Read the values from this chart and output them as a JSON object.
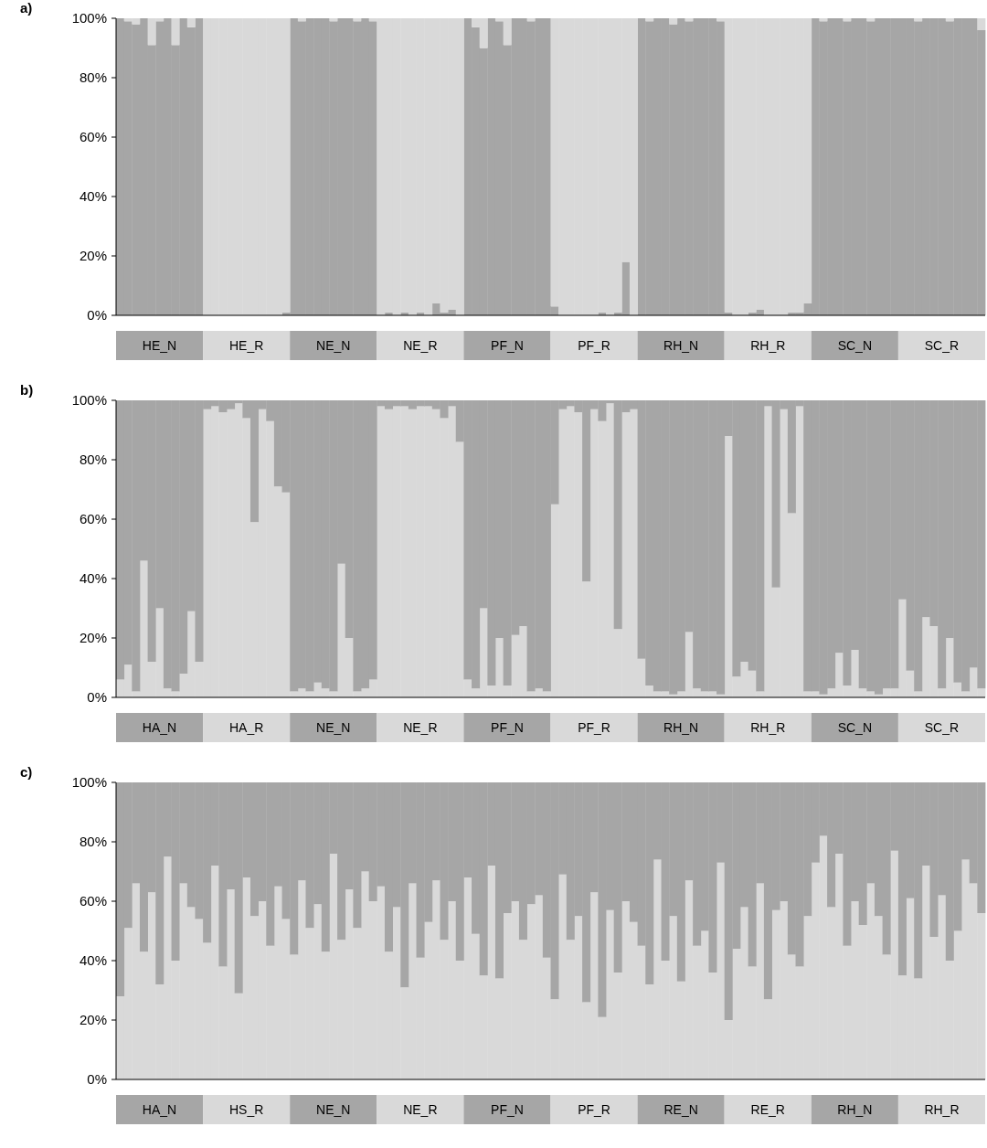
{
  "chart_data": [
    {
      "type": "bar",
      "title": "a)",
      "stacked": true,
      "grid": false,
      "ylim": [
        0,
        100
      ],
      "yticks": [
        {
          "value": 0,
          "label": "0%"
        },
        {
          "value": 20,
          "label": "20%"
        },
        {
          "value": 40,
          "label": "40%"
        },
        {
          "value": 60,
          "label": "60%"
        },
        {
          "value": 80,
          "label": "80%"
        },
        {
          "value": 100,
          "label": "100%"
        }
      ],
      "categories": [
        null,
        null,
        null,
        null,
        null,
        "HE_N",
        null,
        null,
        null,
        null,
        null,
        null,
        null,
        null,
        null,
        null,
        "HE_R",
        null,
        null,
        null,
        null,
        null,
        null,
        null,
        null,
        null,
        null,
        "NE_N",
        null,
        null,
        null,
        null,
        null,
        null,
        null,
        null,
        null,
        null,
        "NE_R",
        null,
        null,
        null,
        null,
        null,
        null,
        null,
        null,
        null,
        null,
        "PF_N",
        null,
        null,
        null,
        null,
        null,
        null,
        null,
        null,
        null,
        null,
        "PF_R",
        null,
        null,
        null,
        null,
        null,
        null,
        null,
        null,
        null,
        null,
        "RH_N",
        null,
        null,
        null,
        null,
        null,
        null,
        null,
        null,
        null,
        null,
        "RH_R",
        null,
        null,
        null,
        null,
        null,
        null,
        null,
        null,
        null,
        null,
        "SC_N",
        null,
        null,
        null,
        null,
        null,
        null,
        null,
        null,
        null,
        null,
        "SC_R",
        null,
        null,
        null,
        null,
        null
      ],
      "series": [
        {
          "color": "#a6a6a6",
          "values": [
            100,
            99,
            98,
            100,
            91,
            99,
            100,
            91,
            100,
            97,
            100,
            0,
            0,
            0,
            0,
            0,
            0,
            0,
            0,
            0,
            0,
            1,
            100,
            99,
            100,
            100,
            100,
            99,
            100,
            100,
            99,
            100,
            99,
            0,
            1,
            0,
            1,
            0,
            1,
            0,
            4,
            1,
            2,
            0,
            100,
            97,
            90,
            100,
            99,
            91,
            100,
            100,
            99,
            100,
            100,
            3,
            0,
            0,
            0,
            0,
            0,
            1,
            0,
            1,
            18,
            0,
            100,
            99,
            100,
            100,
            98,
            100,
            99,
            100,
            100,
            100,
            99,
            1,
            0,
            0,
            1,
            2,
            0,
            0,
            0,
            1,
            1,
            4,
            100,
            99,
            100,
            100,
            99,
            100,
            100,
            99,
            100,
            100,
            100,
            100,
            100,
            99,
            100,
            100,
            100,
            99,
            100,
            100,
            100,
            96
          ]
        },
        {
          "color": "#d9d9d9",
          "values": [
            0,
            1,
            2,
            0,
            9,
            1,
            0,
            9,
            0,
            3,
            0,
            100,
            100,
            100,
            100,
            100,
            100,
            100,
            100,
            100,
            100,
            99,
            0,
            1,
            0,
            0,
            0,
            1,
            0,
            0,
            1,
            0,
            1,
            100,
            99,
            100,
            99,
            100,
            99,
            100,
            96,
            99,
            98,
            100,
            0,
            3,
            10,
            0,
            1,
            9,
            0,
            0,
            1,
            0,
            0,
            97,
            100,
            100,
            100,
            100,
            100,
            99,
            100,
            99,
            82,
            100,
            0,
            1,
            0,
            0,
            2,
            0,
            1,
            0,
            0,
            0,
            1,
            99,
            100,
            100,
            99,
            98,
            100,
            100,
            100,
            99,
            99,
            96,
            0,
            1,
            0,
            0,
            1,
            0,
            0,
            1,
            0,
            0,
            0,
            0,
            0,
            1,
            0,
            0,
            0,
            1,
            0,
            0,
            0,
            4
          ]
        }
      ]
    },
    {
      "type": "bar",
      "title": "b)",
      "stacked": true,
      "grid": false,
      "ylim": [
        0,
        100
      ],
      "yticks": [
        {
          "value": 0,
          "label": "0%"
        },
        {
          "value": 20,
          "label": "20%"
        },
        {
          "value": 40,
          "label": "40%"
        },
        {
          "value": 60,
          "label": "60%"
        },
        {
          "value": 80,
          "label": "80%"
        },
        {
          "value": 100,
          "label": "100%"
        }
      ],
      "categories": [
        null,
        null,
        null,
        null,
        null,
        "HA_N",
        null,
        null,
        null,
        null,
        null,
        null,
        null,
        null,
        null,
        null,
        "HA_R",
        null,
        null,
        null,
        null,
        null,
        null,
        null,
        null,
        null,
        null,
        "NE_N",
        null,
        null,
        null,
        null,
        null,
        null,
        null,
        null,
        null,
        null,
        "NE_R",
        null,
        null,
        null,
        null,
        null,
        null,
        null,
        null,
        null,
        null,
        "PF_N",
        null,
        null,
        null,
        null,
        null,
        null,
        null,
        null,
        null,
        null,
        "PF_R",
        null,
        null,
        null,
        null,
        null,
        null,
        null,
        null,
        null,
        null,
        "RH_N",
        null,
        null,
        null,
        null,
        null,
        null,
        null,
        null,
        null,
        null,
        "RH_R",
        null,
        null,
        null,
        null,
        null,
        null,
        null,
        null,
        null,
        null,
        "SC_N",
        null,
        null,
        null,
        null,
        null,
        null,
        null,
        null,
        null,
        null,
        "SC_R",
        null,
        null,
        null,
        null,
        null
      ],
      "series": [
        {
          "color": "#d9d9d9",
          "values": [
            6,
            11,
            2,
            46,
            12,
            30,
            3,
            2,
            8,
            29,
            12,
            97,
            98,
            96,
            97,
            99,
            94,
            59,
            97,
            93,
            71,
            69,
            2,
            3,
            2,
            5,
            3,
            2,
            45,
            20,
            2,
            3,
            6,
            98,
            97,
            98,
            98,
            97,
            98,
            98,
            97,
            94,
            98,
            86,
            6,
            3,
            30,
            4,
            20,
            4,
            21,
            24,
            2,
            3,
            2,
            65,
            97,
            98,
            96,
            39,
            97,
            93,
            99,
            23,
            96,
            97,
            13,
            4,
            2,
            2,
            1,
            2,
            22,
            3,
            2,
            2,
            1,
            88,
            7,
            12,
            9,
            2,
            98,
            37,
            97,
            62,
            98,
            2,
            2,
            1,
            3,
            15,
            4,
            16,
            3,
            2,
            1,
            3,
            3,
            33,
            9,
            2,
            27,
            24,
            3,
            20,
            5,
            2,
            10,
            3
          ]
        },
        {
          "color": "#a6a6a6",
          "values": [
            94,
            89,
            98,
            54,
            88,
            70,
            97,
            98,
            92,
            71,
            88,
            3,
            2,
            4,
            3,
            1,
            6,
            41,
            3,
            7,
            29,
            31,
            98,
            97,
            98,
            95,
            97,
            98,
            55,
            80,
            98,
            97,
            94,
            2,
            3,
            2,
            2,
            3,
            2,
            2,
            3,
            6,
            2,
            14,
            94,
            97,
            70,
            96,
            80,
            96,
            79,
            76,
            98,
            97,
            98,
            35,
            3,
            2,
            4,
            61,
            3,
            7,
            1,
            77,
            4,
            3,
            87,
            96,
            98,
            98,
            99,
            98,
            78,
            97,
            98,
            98,
            99,
            12,
            93,
            88,
            91,
            98,
            2,
            63,
            3,
            38,
            2,
            98,
            98,
            99,
            97,
            85,
            96,
            84,
            97,
            98,
            99,
            97,
            97,
            67,
            91,
            98,
            73,
            76,
            97,
            80,
            95,
            98,
            90,
            97
          ]
        }
      ]
    },
    {
      "type": "bar",
      "title": "c)",
      "stacked": true,
      "grid": false,
      "ylim": [
        0,
        100
      ],
      "yticks": [
        {
          "value": 0,
          "label": "0%"
        },
        {
          "value": 20,
          "label": "20%"
        },
        {
          "value": 40,
          "label": "40%"
        },
        {
          "value": 60,
          "label": "60%"
        },
        {
          "value": 80,
          "label": "80%"
        },
        {
          "value": 100,
          "label": "100%"
        }
      ],
      "categories": [
        null,
        null,
        null,
        null,
        null,
        "HA_N",
        null,
        null,
        null,
        null,
        null,
        null,
        null,
        null,
        null,
        null,
        "HS_R",
        null,
        null,
        null,
        null,
        null,
        null,
        null,
        null,
        null,
        null,
        "NE_N",
        null,
        null,
        null,
        null,
        null,
        null,
        null,
        null,
        null,
        null,
        "NE_R",
        null,
        null,
        null,
        null,
        null,
        null,
        null,
        null,
        null,
        null,
        "PF_N",
        null,
        null,
        null,
        null,
        null,
        null,
        null,
        null,
        null,
        null,
        "PF_R",
        null,
        null,
        null,
        null,
        null,
        null,
        null,
        null,
        null,
        null,
        "RE_N",
        null,
        null,
        null,
        null,
        null,
        null,
        null,
        null,
        null,
        null,
        "RE_R",
        null,
        null,
        null,
        null,
        null,
        null,
        null,
        null,
        null,
        null,
        "RH_N",
        null,
        null,
        null,
        null,
        null,
        null,
        null,
        null,
        null,
        null,
        "RH_R",
        null,
        null,
        null,
        null,
        null
      ],
      "series": [
        {
          "color": "#d9d9d9",
          "values": [
            28,
            51,
            66,
            43,
            63,
            32,
            75,
            40,
            66,
            58,
            54,
            46,
            72,
            38,
            64,
            29,
            68,
            55,
            60,
            45,
            65,
            54,
            42,
            67,
            51,
            59,
            43,
            76,
            47,
            64,
            51,
            70,
            60,
            65,
            43,
            58,
            31,
            66,
            41,
            53,
            67,
            47,
            60,
            40,
            68,
            49,
            35,
            72,
            34,
            56,
            60,
            47,
            59,
            62,
            41,
            27,
            69,
            47,
            55,
            26,
            63,
            21,
            57,
            36,
            60,
            53,
            45,
            32,
            74,
            40,
            55,
            33,
            67,
            45,
            50,
            36,
            73,
            20,
            44,
            58,
            38,
            66,
            27,
            57,
            60,
            42,
            38,
            55,
            73,
            82,
            58,
            76,
            45,
            60,
            52,
            66,
            55,
            42,
            77,
            35,
            61,
            34,
            72,
            48,
            62,
            40,
            50,
            74,
            66,
            56
          ]
        },
        {
          "color": "#a6a6a6",
          "values": [
            72,
            49,
            34,
            57,
            37,
            68,
            25,
            60,
            34,
            42,
            46,
            54,
            28,
            62,
            36,
            71,
            32,
            45,
            40,
            55,
            35,
            46,
            58,
            33,
            49,
            41,
            57,
            24,
            53,
            36,
            49,
            30,
            40,
            35,
            57,
            42,
            69,
            34,
            59,
            47,
            33,
            53,
            40,
            60,
            32,
            51,
            65,
            28,
            66,
            44,
            40,
            53,
            41,
            38,
            59,
            73,
            31,
            53,
            45,
            74,
            37,
            79,
            43,
            64,
            40,
            47,
            55,
            68,
            26,
            60,
            45,
            67,
            33,
            55,
            50,
            64,
            27,
            80,
            56,
            42,
            62,
            34,
            73,
            43,
            40,
            58,
            62,
            45,
            27,
            18,
            42,
            24,
            55,
            40,
            48,
            34,
            45,
            58,
            23,
            65,
            39,
            66,
            28,
            52,
            38,
            60,
            50,
            26,
            34,
            44
          ]
        }
      ]
    }
  ]
}
